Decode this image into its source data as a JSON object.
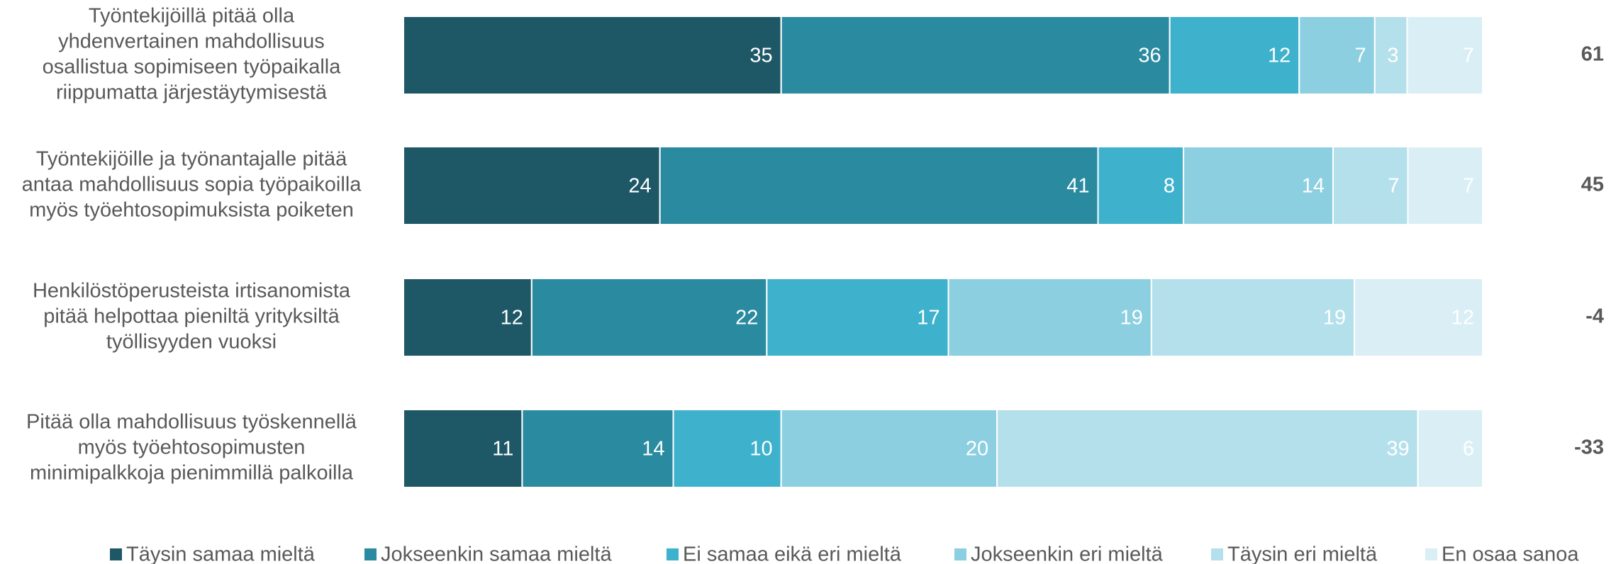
{
  "chart_data": {
    "type": "stacked_bar_horizontal",
    "categories": [
      [
        "Työntekijöillä pitää olla",
        "yhdenvertainen mahdollisuus",
        "osallistua sopimiseen työpaikalla",
        "riippumatta järjestäytymisestä"
      ],
      [
        "Työntekijöille ja työnantajalle pitää",
        "antaa mahdollisuus sopia työpaikoilla",
        "myös työehtosopimuksista poiketen"
      ],
      [
        "Henkilöstöperusteista irtisanomista",
        "pitää helpottaa pieniltä yrityksiltä",
        "työllisyyden vuoksi"
      ],
      [
        "Pitää olla mahdollisuus työskennellä",
        "myös työehtosopimusten",
        "minimipalkkoja pienimmillä palkoilla"
      ]
    ],
    "series": [
      {
        "name": "Täysin samaa mieltä",
        "color": "#1e5867",
        "values": [
          35,
          24,
          12,
          11
        ]
      },
      {
        "name": "Jokseenkin samaa mieltä",
        "color": "#2a8a9f",
        "values": [
          36,
          41,
          22,
          14
        ]
      },
      {
        "name": "Ei samaa eikä eri mieltä",
        "color": "#3eb1cd",
        "values": [
          12,
          8,
          17,
          10
        ]
      },
      {
        "name": "Jokseenkin eri mieltä",
        "color": "#8ccfe1",
        "values": [
          7,
          14,
          19,
          20
        ]
      },
      {
        "name": "Täysin eri mieltä",
        "color": "#b4e0ec",
        "values": [
          3,
          7,
          19,
          39
        ]
      },
      {
        "name": "En osaa sanoa",
        "color": "#d9eff5",
        "values": [
          7,
          7,
          12,
          6
        ]
      }
    ],
    "net": [
      61,
      45,
      -4,
      -33
    ]
  }
}
